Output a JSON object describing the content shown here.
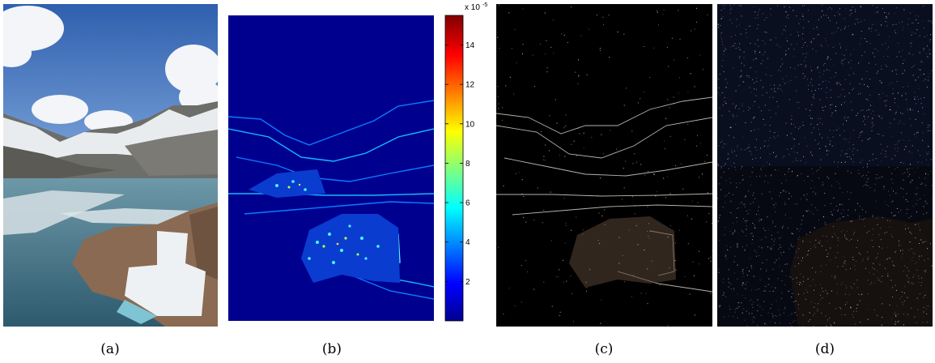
{
  "panels": [
    {
      "id": "a",
      "caption": "(a)",
      "description_icon": "landscape-photo-icon"
    },
    {
      "id": "b",
      "caption": "(b)",
      "description_icon": "heatmap-icon"
    },
    {
      "id": "c",
      "caption": "(c)",
      "description_icon": "edge-map-icon"
    },
    {
      "id": "d",
      "caption": "(d)",
      "description_icon": "noise-map-icon"
    }
  ],
  "colorbar": {
    "exponent_label": "x 10",
    "exponent_power": "-5",
    "ticks": [
      "14",
      "12",
      "10",
      "8",
      "6",
      "4",
      "2"
    ],
    "colormap": "jet",
    "colors": [
      "#00008f",
      "#0000ff",
      "#00ffff",
      "#ffff00",
      "#ff0000",
      "#800000"
    ]
  },
  "chart_data": {
    "type": "heatmap",
    "title": "",
    "colorbar_ticks": [
      2,
      4,
      6,
      8,
      10,
      12,
      14
    ],
    "colorbar_range": [
      0,
      15.5
    ],
    "scale_exponent": -5
  },
  "colors": {
    "sky": "#3c6fb8",
    "snow": "#e8ecef",
    "lake": "#4b7f95",
    "rock": "#8a6a52",
    "heatmap_bg": "#00008f",
    "dark_bg": "#000000"
  }
}
